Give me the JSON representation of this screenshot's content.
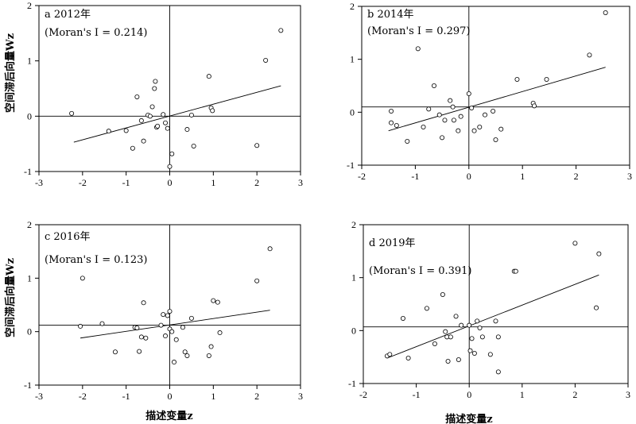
{
  "y_axis_label": "空间滞后向量Wz",
  "x_axis_label": "描述变量z",
  "chart_data": [
    {
      "type": "scatter",
      "panel": "a 2012年",
      "annotation": "(Moran's I = 0.214)",
      "xlim": [
        -3,
        3
      ],
      "ylim": [
        -1,
        2
      ],
      "xticks": [
        -3,
        -2,
        -1,
        0,
        1,
        2,
        3
      ],
      "yticks": [
        -1,
        0,
        1,
        2
      ],
      "x_reference": 0,
      "y_reference": 0,
      "fit_line": [
        [
          -2.2,
          -0.47
        ],
        [
          2.55,
          0.55
        ]
      ],
      "points": [
        [
          -2.25,
          0.05
        ],
        [
          -1.4,
          -0.27
        ],
        [
          -1.0,
          -0.26
        ],
        [
          -0.85,
          -0.58
        ],
        [
          -0.75,
          0.35
        ],
        [
          -0.65,
          -0.08
        ],
        [
          -0.6,
          -0.45
        ],
        [
          -0.5,
          0.02
        ],
        [
          -0.45,
          0.0
        ],
        [
          -0.4,
          0.17
        ],
        [
          -0.35,
          0.5
        ],
        [
          -0.33,
          0.63
        ],
        [
          -0.3,
          -0.2
        ],
        [
          -0.28,
          -0.18
        ],
        [
          -0.15,
          0.03
        ],
        [
          -0.1,
          -0.12
        ],
        [
          -0.05,
          -0.22
        ],
        [
          0.0,
          -0.91
        ],
        [
          0.05,
          -0.68
        ],
        [
          0.4,
          -0.24
        ],
        [
          0.5,
          0.02
        ],
        [
          0.55,
          -0.54
        ],
        [
          0.9,
          0.72
        ],
        [
          0.95,
          0.15
        ],
        [
          0.98,
          0.1
        ],
        [
          2.0,
          -0.53
        ],
        [
          2.2,
          1.01
        ],
        [
          2.55,
          1.55
        ]
      ]
    },
    {
      "type": "scatter",
      "panel": "b 2014年",
      "annotation": "(Moran's I = 0.297)",
      "xlim": [
        -2,
        3
      ],
      "ylim": [
        -1,
        2
      ],
      "xticks": [
        -2,
        -1,
        0,
        1,
        2,
        3
      ],
      "yticks": [
        -1,
        0,
        1,
        2
      ],
      "x_reference": 0,
      "y_reference": 0.1,
      "fit_line": [
        [
          -1.5,
          -0.35
        ],
        [
          2.55,
          0.85
        ]
      ],
      "points": [
        [
          -1.45,
          0.02
        ],
        [
          -1.45,
          -0.2
        ],
        [
          -1.35,
          -0.25
        ],
        [
          -1.15,
          -0.55
        ],
        [
          -0.95,
          1.2
        ],
        [
          -0.85,
          -0.28
        ],
        [
          -0.75,
          0.06
        ],
        [
          -0.65,
          0.5
        ],
        [
          -0.55,
          -0.05
        ],
        [
          -0.5,
          -0.48
        ],
        [
          -0.45,
          -0.15
        ],
        [
          -0.35,
          0.22
        ],
        [
          -0.3,
          0.1
        ],
        [
          -0.28,
          -0.15
        ],
        [
          -0.2,
          -0.35
        ],
        [
          -0.15,
          -0.08
        ],
        [
          0.0,
          0.35
        ],
        [
          0.05,
          0.08
        ],
        [
          0.1,
          -0.35
        ],
        [
          0.2,
          -0.28
        ],
        [
          0.3,
          -0.05
        ],
        [
          0.45,
          0.02
        ],
        [
          0.5,
          -0.52
        ],
        [
          0.6,
          -0.32
        ],
        [
          0.9,
          0.62
        ],
        [
          1.2,
          0.17
        ],
        [
          1.22,
          0.12
        ],
        [
          1.45,
          0.62
        ],
        [
          2.25,
          1.08
        ],
        [
          2.55,
          1.88
        ]
      ]
    },
    {
      "type": "scatter",
      "panel": "c 2016年",
      "annotation": "(Moran's I = 0.123)",
      "xlim": [
        -3,
        3
      ],
      "ylim": [
        -1,
        2
      ],
      "xticks": [
        -3,
        -2,
        -1,
        0,
        1,
        2,
        3
      ],
      "yticks": [
        -1,
        0,
        1,
        2
      ],
      "x_reference": 0,
      "y_reference": 0.12,
      "fit_line": [
        [
          -2.05,
          -0.12
        ],
        [
          2.3,
          0.4
        ]
      ],
      "points": [
        [
          -2.05,
          0.1
        ],
        [
          -2.0,
          1.0
        ],
        [
          -1.55,
          0.15
        ],
        [
          -1.25,
          -0.38
        ],
        [
          -0.8,
          0.08
        ],
        [
          -0.75,
          0.07
        ],
        [
          -0.7,
          -0.37
        ],
        [
          -0.65,
          -0.1
        ],
        [
          -0.6,
          0.54
        ],
        [
          -0.55,
          -0.12
        ],
        [
          -0.2,
          0.12
        ],
        [
          -0.15,
          0.32
        ],
        [
          -0.1,
          -0.08
        ],
        [
          -0.05,
          0.3
        ],
        [
          0.0,
          0.38
        ],
        [
          0.0,
          0.05
        ],
        [
          0.05,
          0.0
        ],
        [
          0.1,
          -0.57
        ],
        [
          0.15,
          -0.15
        ],
        [
          0.3,
          0.08
        ],
        [
          0.35,
          -0.38
        ],
        [
          0.4,
          -0.45
        ],
        [
          0.5,
          0.25
        ],
        [
          0.9,
          -0.45
        ],
        [
          0.95,
          -0.28
        ],
        [
          1.0,
          0.58
        ],
        [
          1.1,
          0.55
        ],
        [
          1.15,
          -0.02
        ],
        [
          2.0,
          0.95
        ],
        [
          2.3,
          1.55
        ]
      ]
    },
    {
      "type": "scatter",
      "panel": "d 2019年",
      "annotation": "(Moran's I = 0.391)",
      "xlim": [
        -2,
        3
      ],
      "ylim": [
        -1,
        2
      ],
      "xticks": [
        -2,
        -1,
        0,
        1,
        2,
        3
      ],
      "yticks": [
        -1,
        0,
        1,
        2
      ],
      "x_reference": 0,
      "y_reference": 0.07,
      "fit_line": [
        [
          -1.55,
          -0.52
        ],
        [
          2.45,
          1.05
        ]
      ],
      "points": [
        [
          -1.55,
          -0.48
        ],
        [
          -1.5,
          -0.45
        ],
        [
          -1.25,
          0.23
        ],
        [
          -1.15,
          -0.52
        ],
        [
          -0.8,
          0.42
        ],
        [
          -0.65,
          -0.25
        ],
        [
          -0.5,
          0.68
        ],
        [
          -0.45,
          -0.02
        ],
        [
          -0.42,
          -0.12
        ],
        [
          -0.4,
          -0.58
        ],
        [
          -0.35,
          -0.12
        ],
        [
          -0.25,
          0.27
        ],
        [
          -0.2,
          -0.55
        ],
        [
          -0.15,
          0.1
        ],
        [
          0.0,
          0.1
        ],
        [
          0.02,
          -0.38
        ],
        [
          0.05,
          -0.15
        ],
        [
          0.1,
          -0.43
        ],
        [
          0.15,
          0.18
        ],
        [
          0.2,
          0.05
        ],
        [
          0.25,
          -0.12
        ],
        [
          0.4,
          -0.45
        ],
        [
          0.5,
          0.18
        ],
        [
          0.55,
          -0.12
        ],
        [
          0.55,
          -0.78
        ],
        [
          0.85,
          1.12
        ],
        [
          0.88,
          1.12
        ],
        [
          2.0,
          1.65
        ],
        [
          2.4,
          0.43
        ],
        [
          2.45,
          1.45
        ]
      ]
    }
  ]
}
